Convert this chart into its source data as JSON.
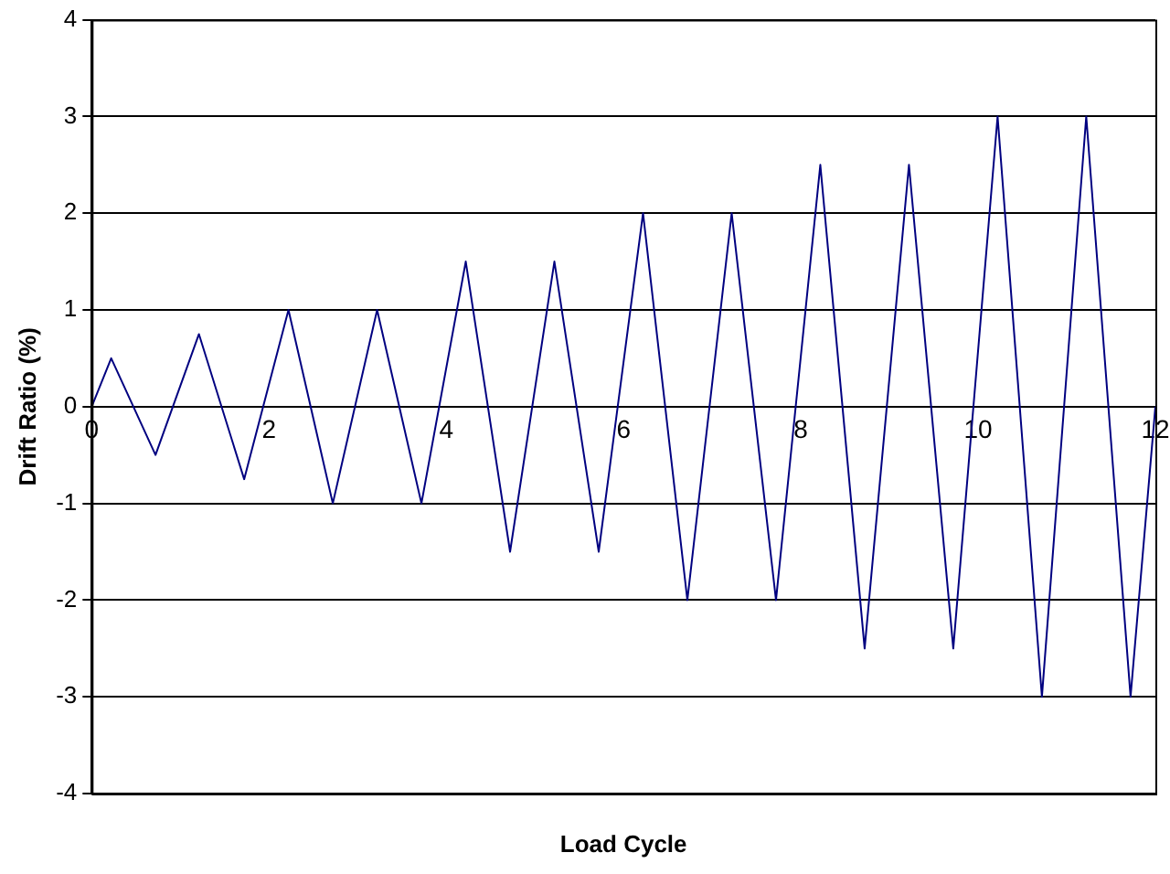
{
  "chart_data": {
    "type": "line",
    "xlabel": "Load Cycle",
    "ylabel": "Drift Ratio (%)",
    "x": [
      0,
      0.22,
      0.72,
      1.21,
      1.72,
      2.22,
      2.72,
      3.22,
      3.72,
      4.22,
      4.72,
      5.22,
      5.72,
      6.22,
      6.72,
      7.22,
      7.72,
      8.22,
      8.72,
      9.22,
      9.72,
      10.22,
      10.72,
      11.22,
      11.72,
      12
    ],
    "series": [
      {
        "color": "#000080",
        "values": [
          0,
          0.5,
          -0.5,
          0.75,
          -0.75,
          1,
          -1,
          1,
          -1,
          1.5,
          -1.5,
          1.5,
          -1.5,
          2,
          -2,
          2,
          -2,
          2.5,
          -2.5,
          2.5,
          -2.5,
          3,
          -3,
          3,
          -3,
          0
        ]
      }
    ],
    "xlim": [
      0,
      12
    ],
    "xticks": [
      0,
      2,
      4,
      6,
      8,
      10,
      12
    ],
    "ylim": [
      -4,
      4
    ],
    "yticks": [
      -4,
      -3,
      -2,
      -1,
      0,
      1,
      2,
      3,
      4
    ],
    "grid": "y",
    "legend": false,
    "marker": "none",
    "line_style": "solid"
  }
}
